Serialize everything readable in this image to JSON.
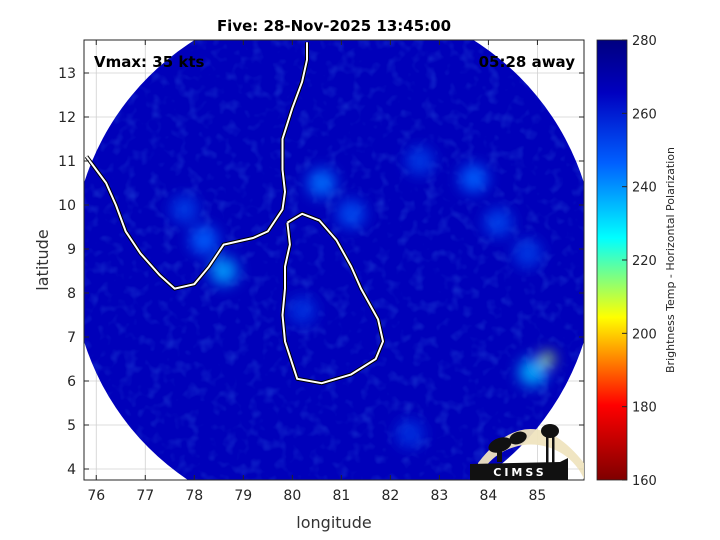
{
  "chart_data": {
    "type": "heatmap",
    "title": "Five: 28-Nov-2025 13:45:00",
    "xlabel": "longitude",
    "ylabel": "latitude",
    "xlim": [
      75.75,
      85.95
    ],
    "ylim": [
      3.75,
      13.75
    ],
    "x_ticks": [
      76,
      77,
      78,
      79,
      80,
      81,
      82,
      83,
      84,
      85
    ],
    "y_ticks": [
      4,
      5,
      6,
      7,
      8,
      9,
      10,
      11,
      12,
      13
    ],
    "grid": true,
    "annotations": {
      "vmax": "Vmax: 35 kts",
      "away": "05:28 away"
    },
    "colorbar": {
      "label": "Brightness Temp - Horizontal Polarization",
      "min": 160,
      "max": 280,
      "ticks": [
        160,
        180,
        200,
        220,
        240,
        260,
        280
      ],
      "colormap": [
        "#7f0000",
        "#ff0000",
        "#ffff00",
        "#00ffff",
        "#0060ff",
        "#0000c0",
        "#000080"
      ]
    },
    "swath": {
      "center": [
        80.85,
        8.7
      ],
      "radius_deg": 5.35,
      "background_value": 262
    },
    "features": [
      {
        "lon": 78.6,
        "lat": 8.5,
        "value": 232
      },
      {
        "lon": 78.2,
        "lat": 9.2,
        "value": 240
      },
      {
        "lon": 80.6,
        "lat": 10.5,
        "value": 238
      },
      {
        "lon": 81.2,
        "lat": 9.8,
        "value": 244
      },
      {
        "lon": 83.7,
        "lat": 10.6,
        "value": 240
      },
      {
        "lon": 82.6,
        "lat": 11.0,
        "value": 248
      },
      {
        "lon": 85.2,
        "lat": 6.5,
        "value": 205
      },
      {
        "lon": 84.9,
        "lat": 6.2,
        "value": 230
      },
      {
        "lon": 80.2,
        "lat": 7.6,
        "value": 250
      },
      {
        "lon": 77.8,
        "lat": 9.9,
        "value": 248
      },
      {
        "lon": 84.2,
        "lat": 9.6,
        "value": 246
      },
      {
        "lon": 84.8,
        "lat": 8.9,
        "value": 248
      },
      {
        "lon": 82.4,
        "lat": 4.8,
        "value": 250
      }
    ],
    "coastlines": [
      {
        "name": "India",
        "points": [
          [
            75.8,
            11.1
          ],
          [
            76.2,
            10.5
          ],
          [
            76.4,
            10.0
          ],
          [
            76.6,
            9.4
          ],
          [
            76.9,
            8.9
          ],
          [
            77.3,
            8.4
          ],
          [
            77.6,
            8.1
          ],
          [
            78.0,
            8.2
          ],
          [
            78.3,
            8.6
          ],
          [
            78.6,
            9.1
          ],
          [
            79.2,
            9.25
          ],
          [
            79.5,
            9.4
          ],
          [
            79.8,
            9.9
          ],
          [
            79.85,
            10.3
          ],
          [
            79.8,
            10.8
          ],
          [
            79.8,
            11.5
          ],
          [
            80.0,
            12.2
          ],
          [
            80.2,
            12.8
          ],
          [
            80.3,
            13.3
          ],
          [
            80.3,
            13.7
          ]
        ]
      },
      {
        "name": "Sri Lanka",
        "points": [
          [
            79.9,
            9.6
          ],
          [
            80.2,
            9.8
          ],
          [
            80.55,
            9.65
          ],
          [
            80.9,
            9.2
          ],
          [
            81.2,
            8.6
          ],
          [
            81.4,
            8.1
          ],
          [
            81.75,
            7.4
          ],
          [
            81.85,
            6.9
          ],
          [
            81.7,
            6.5
          ],
          [
            81.2,
            6.15
          ],
          [
            80.6,
            5.95
          ],
          [
            80.1,
            6.05
          ],
          [
            79.85,
            6.9
          ],
          [
            79.8,
            7.5
          ],
          [
            79.85,
            8.1
          ],
          [
            79.85,
            8.6
          ],
          [
            79.95,
            9.1
          ],
          [
            79.9,
            9.6
          ]
        ]
      }
    ]
  },
  "logo": {
    "text": "CIMSS"
  }
}
